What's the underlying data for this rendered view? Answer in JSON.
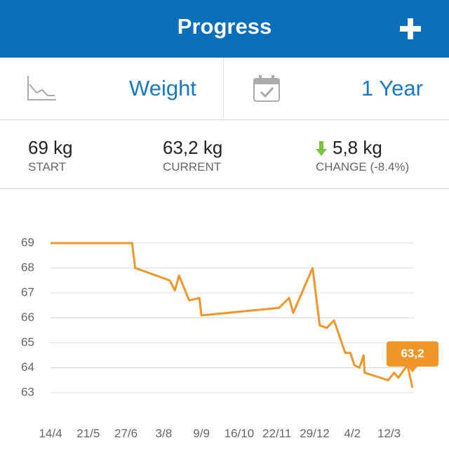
{
  "header": {
    "title": "Progress"
  },
  "selectors": {
    "metric": "Weight",
    "period": "1 Year"
  },
  "stats": [
    {
      "value": "69 kg",
      "label": "START"
    },
    {
      "value": "63,2 kg",
      "label": "CURRENT"
    },
    {
      "value": "5,8 kg",
      "label": "CHANGE (-8.4%)"
    }
  ],
  "chart_data": {
    "type": "line",
    "color": "#f0962a",
    "x": [
      0,
      80,
      83,
      117,
      122,
      126,
      136,
      146,
      148,
      224,
      234,
      238,
      257,
      264,
      271,
      278,
      289,
      294,
      298,
      303,
      307,
      308,
      331,
      337,
      341,
      350,
      355
    ],
    "values": [
      69,
      69,
      68,
      67.5,
      67.1,
      67.7,
      66.7,
      66.8,
      66.1,
      66.4,
      66.8,
      66.2,
      68,
      65.7,
      65.6,
      65.9,
      64.6,
      64.6,
      64.1,
      64,
      64.5,
      63.8,
      63.5,
      63.8,
      63.6,
      64.1,
      63.2
    ],
    "xlim": [
      0,
      355
    ],
    "xticks": [
      {
        "value": 0,
        "label": "14/4"
      },
      {
        "value": 37,
        "label": "21/5"
      },
      {
        "value": 74,
        "label": "27/6"
      },
      {
        "value": 111,
        "label": "3/8"
      },
      {
        "value": 148,
        "label": "9/9"
      },
      {
        "value": 185,
        "label": "16/10"
      },
      {
        "value": 222,
        "label": "22/11"
      },
      {
        "value": 259,
        "label": "29/12"
      },
      {
        "value": 296,
        "label": "4/2"
      },
      {
        "value": 332,
        "label": "12/3"
      }
    ],
    "ylim": [
      63,
      69
    ],
    "yticks": [
      63,
      64,
      65,
      66,
      67,
      68,
      69
    ],
    "grid": true,
    "annotation": "63,2"
  }
}
